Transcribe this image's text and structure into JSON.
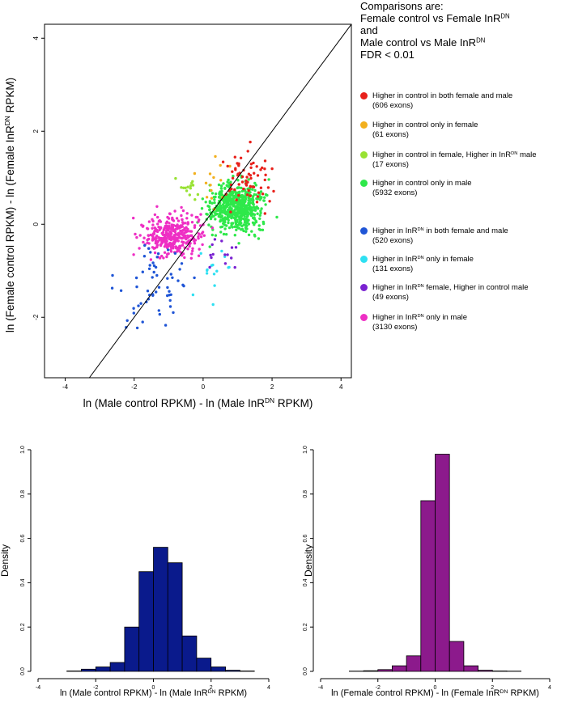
{
  "chart_data": [
    {
      "type": "scatter",
      "xlabel": "ln (Male control RPKM) - ln (Male InR^DN RPKM)",
      "ylabel": "ln (Female control RPKM) - ln (Female InR^DN RPKM)",
      "xlim": [
        -4.6,
        4.3
      ],
      "ylim": [
        -3.3,
        4.3
      ],
      "x_ticks": [
        "-4",
        "-2",
        "0",
        "2",
        "4"
      ],
      "y_ticks": [
        "-2",
        "0",
        "2",
        "4"
      ],
      "diagonal_line": {
        "slope": 1,
        "intercept": 0
      },
      "legend_header": [
        "Comparisons are:",
        "Female control vs Female InR^DN",
        "and",
        "Male control vs Male InR^DN",
        "FDR < 0.01"
      ],
      "series": [
        {
          "name": "Higher in control in both female and male",
          "count": "(606 exons)",
          "color": "#e8211b",
          "center": [
            1.2,
            0.9
          ],
          "spread": [
            0.55,
            0.45
          ]
        },
        {
          "name": "Higher in control only in female",
          "count": "(61 exons)",
          "color": "#f2b01e",
          "center": [
            0.3,
            0.9
          ],
          "spread": [
            0.35,
            0.5
          ]
        },
        {
          "name": "Higher in control in female, Higher in InR^DN male",
          "count": "(17 exons)",
          "color": "#98e233",
          "center": [
            -0.4,
            0.8
          ],
          "spread": [
            0.25,
            0.15
          ]
        },
        {
          "name": "Higher in control only in male",
          "count": "(5932 exons)",
          "color": "#2ee84a",
          "center": [
            1.0,
            0.35
          ],
          "spread": [
            0.55,
            0.35
          ]
        },
        {
          "name": "Higher in InR^DN in both female and male",
          "count": "(520 exons)",
          "color": "#1f55d6",
          "center": [
            -1.3,
            -1.3
          ],
          "spread": [
            0.65,
            0.6
          ]
        },
        {
          "name": "Higher in InR^DN only in female",
          "count": "(131 exons)",
          "color": "#2ee0f2",
          "center": [
            0.3,
            -1.0
          ],
          "spread": [
            0.4,
            0.4
          ]
        },
        {
          "name": "Higher in InR^DN female, Higher in control male",
          "count": "(49 exons)",
          "color": "#7a22d1",
          "center": [
            0.6,
            -0.5
          ],
          "spread": [
            0.4,
            0.25
          ]
        },
        {
          "name": "Higher in InR^DN only in male",
          "count": "(3130 exons)",
          "color": "#ee2fc4",
          "center": [
            -0.9,
            -0.25
          ],
          "spread": [
            0.6,
            0.3
          ]
        }
      ]
    },
    {
      "type": "bar",
      "subtype": "histogram",
      "xlabel": "ln (Male control RPKM) - ln (Male InR^DN RPKM)",
      "ylabel": "Density",
      "bar_color": "#0a1a8c",
      "xlim": [
        -4,
        4
      ],
      "ylim": [
        0,
        1.0
      ],
      "x_ticks": [
        "-4",
        "-2",
        "0",
        "2",
        "4"
      ],
      "y_ticks": [
        "0.0",
        "0.2",
        "0.4",
        "0.6",
        "0.8",
        "1.0"
      ],
      "bin_edges": [
        -3.0,
        -2.5,
        -2.0,
        -1.5,
        -1.0,
        -0.5,
        0.0,
        0.5,
        1.0,
        1.5,
        2.0,
        2.5,
        3.0,
        3.5
      ],
      "values": [
        0.002,
        0.01,
        0.02,
        0.04,
        0.2,
        0.45,
        0.56,
        0.49,
        0.16,
        0.06,
        0.02,
        0.005,
        0.002
      ]
    },
    {
      "type": "bar",
      "subtype": "histogram",
      "xlabel": "ln (Female control RPKM) - ln (Female InR^DN RPKM)",
      "ylabel": "Density",
      "bar_color": "#8c1a8c",
      "xlim": [
        -4,
        4
      ],
      "ylim": [
        0,
        1.0
      ],
      "x_ticks": [
        "-4",
        "-2",
        "0",
        "2",
        "4"
      ],
      "y_ticks": [
        "0.0",
        "0.2",
        "0.4",
        "0.6",
        "0.8",
        "1.0"
      ],
      "bin_edges": [
        -3.0,
        -2.5,
        -2.0,
        -1.5,
        -1.0,
        -0.5,
        0.0,
        0.5,
        1.0,
        1.5,
        2.0,
        2.5,
        3.0
      ],
      "values": [
        0.001,
        0.003,
        0.008,
        0.025,
        0.07,
        0.77,
        0.98,
        0.135,
        0.025,
        0.005,
        0.002,
        0.001
      ]
    }
  ]
}
